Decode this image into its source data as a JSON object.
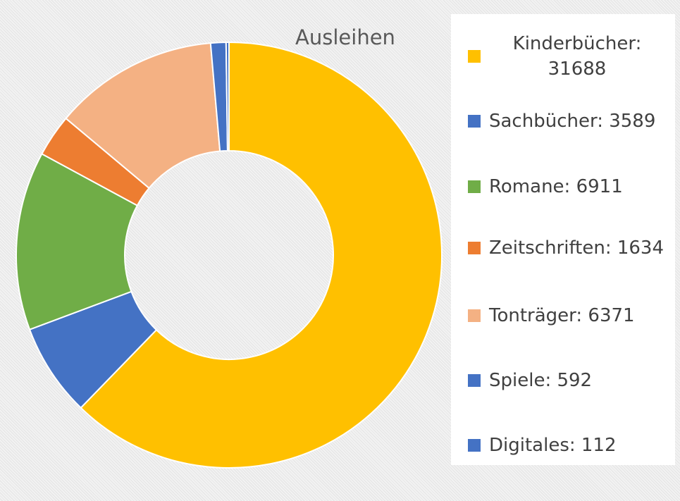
{
  "chart_data": {
    "type": "donut",
    "title": "Ausleihen",
    "categories": [
      "Kinderbücher: 31688",
      "Sachbücher: 3589",
      "Romane: 6911",
      "Zeitschriften: 1634",
      "Tonträger: 6371",
      "Spiele: 592",
      "Digitales: 112"
    ],
    "values": [
      31688,
      3589,
      6911,
      1634,
      6371,
      592,
      112
    ],
    "colors": [
      "#ffc000",
      "#4472c4",
      "#70ad47",
      "#ed7d31",
      "#f4b183",
      "#4472c4",
      "#4472c4"
    ],
    "legend": "right"
  }
}
